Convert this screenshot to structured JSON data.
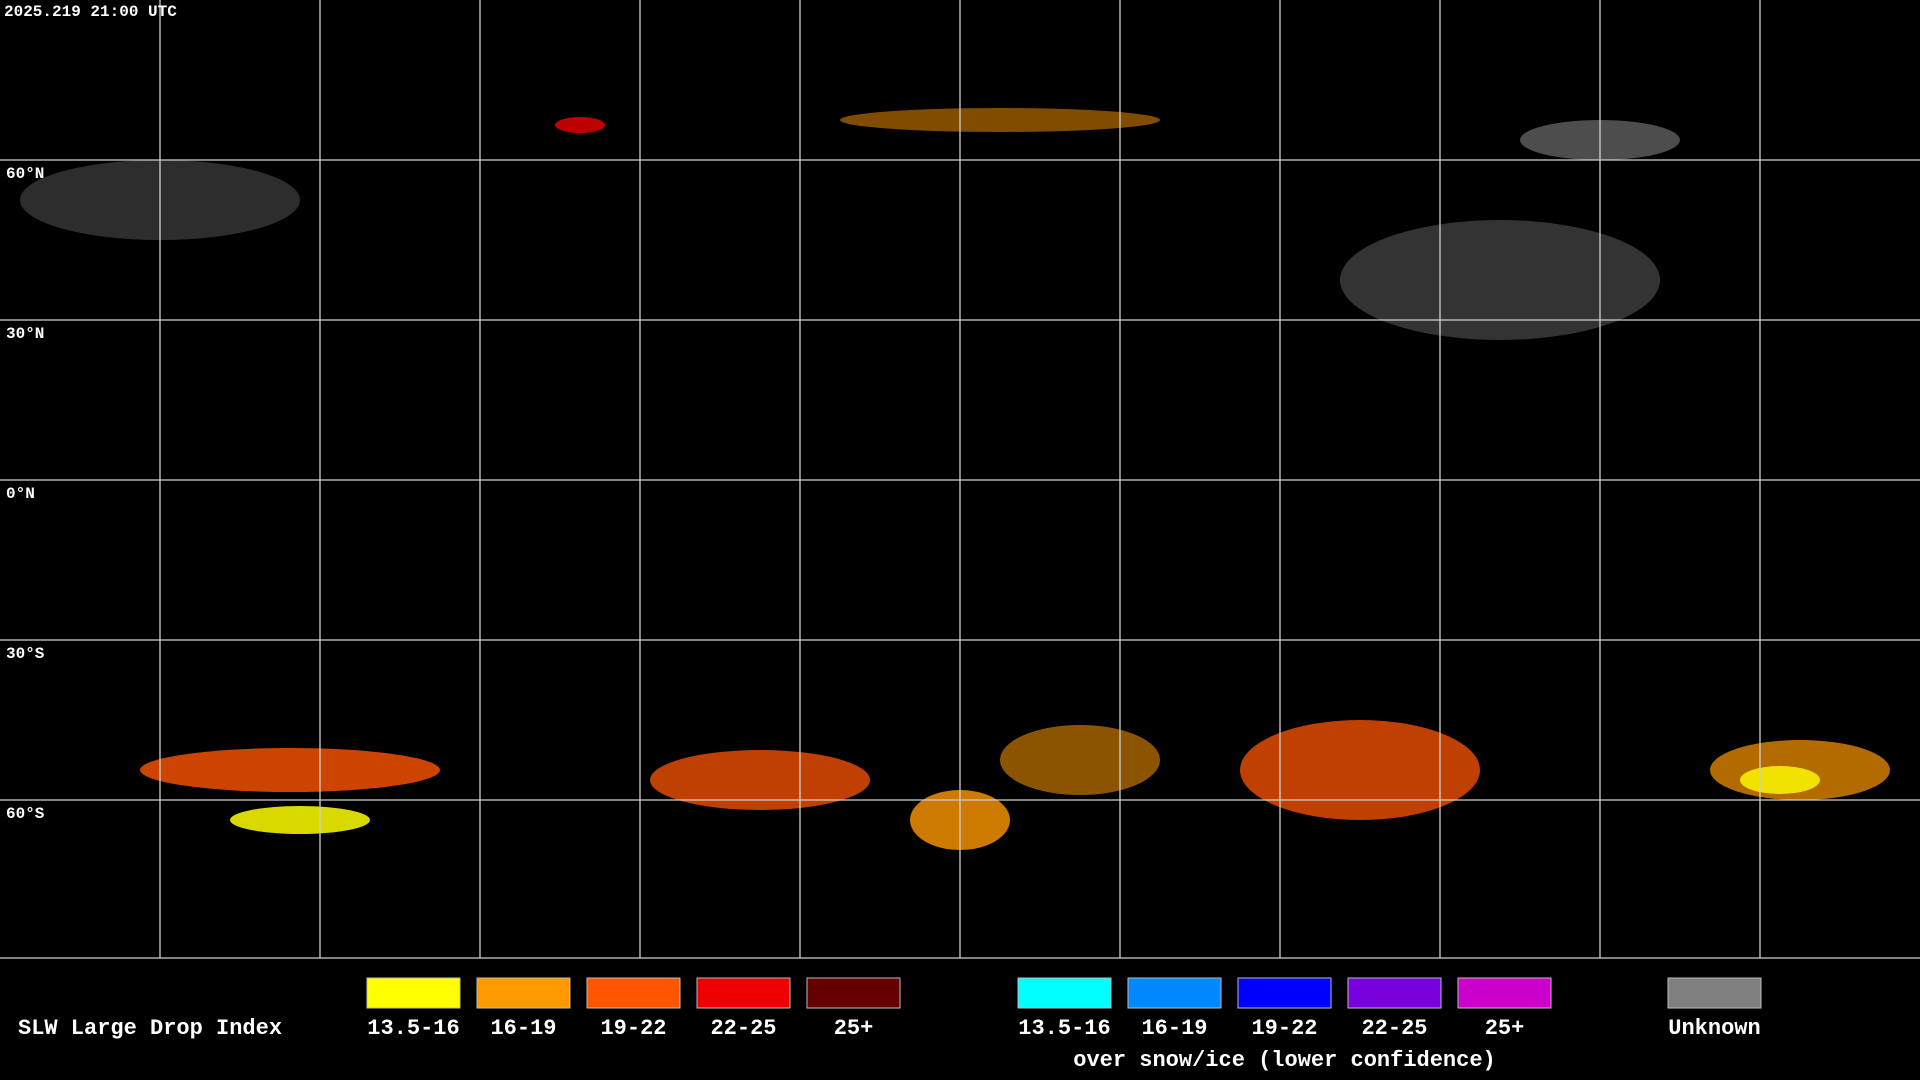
{
  "header": {
    "timestamp": "2025.219 21:00 UTC"
  },
  "map": {
    "lat_labels": [
      "60°N",
      "30°N",
      "0°N",
      "30°S",
      "60°S"
    ]
  },
  "legend": {
    "title": "SLW Large Drop Index",
    "groups": [
      {
        "items": [
          {
            "label": "13.5-16",
            "color": "#ffff00"
          },
          {
            "label": "16-19",
            "color": "#ff9900"
          },
          {
            "label": "19-22",
            "color": "#ff5500"
          },
          {
            "label": "22-25",
            "color": "#ee0000"
          },
          {
            "label": "25+",
            "color": "#660000"
          }
        ]
      },
      {
        "items": [
          {
            "label": "13.5-16",
            "color": "#00ffff"
          },
          {
            "label": "16-19",
            "color": "#0088ff"
          },
          {
            "label": "19-22",
            "color": "#0000ff"
          },
          {
            "label": "22-25",
            "color": "#7700dd"
          },
          {
            "label": "25+",
            "color": "#cc00cc"
          }
        ],
        "caption": "over snow/ice (lower confidence)"
      },
      {
        "items": [
          {
            "label": "Unknown",
            "color": "#808080"
          }
        ]
      }
    ]
  }
}
